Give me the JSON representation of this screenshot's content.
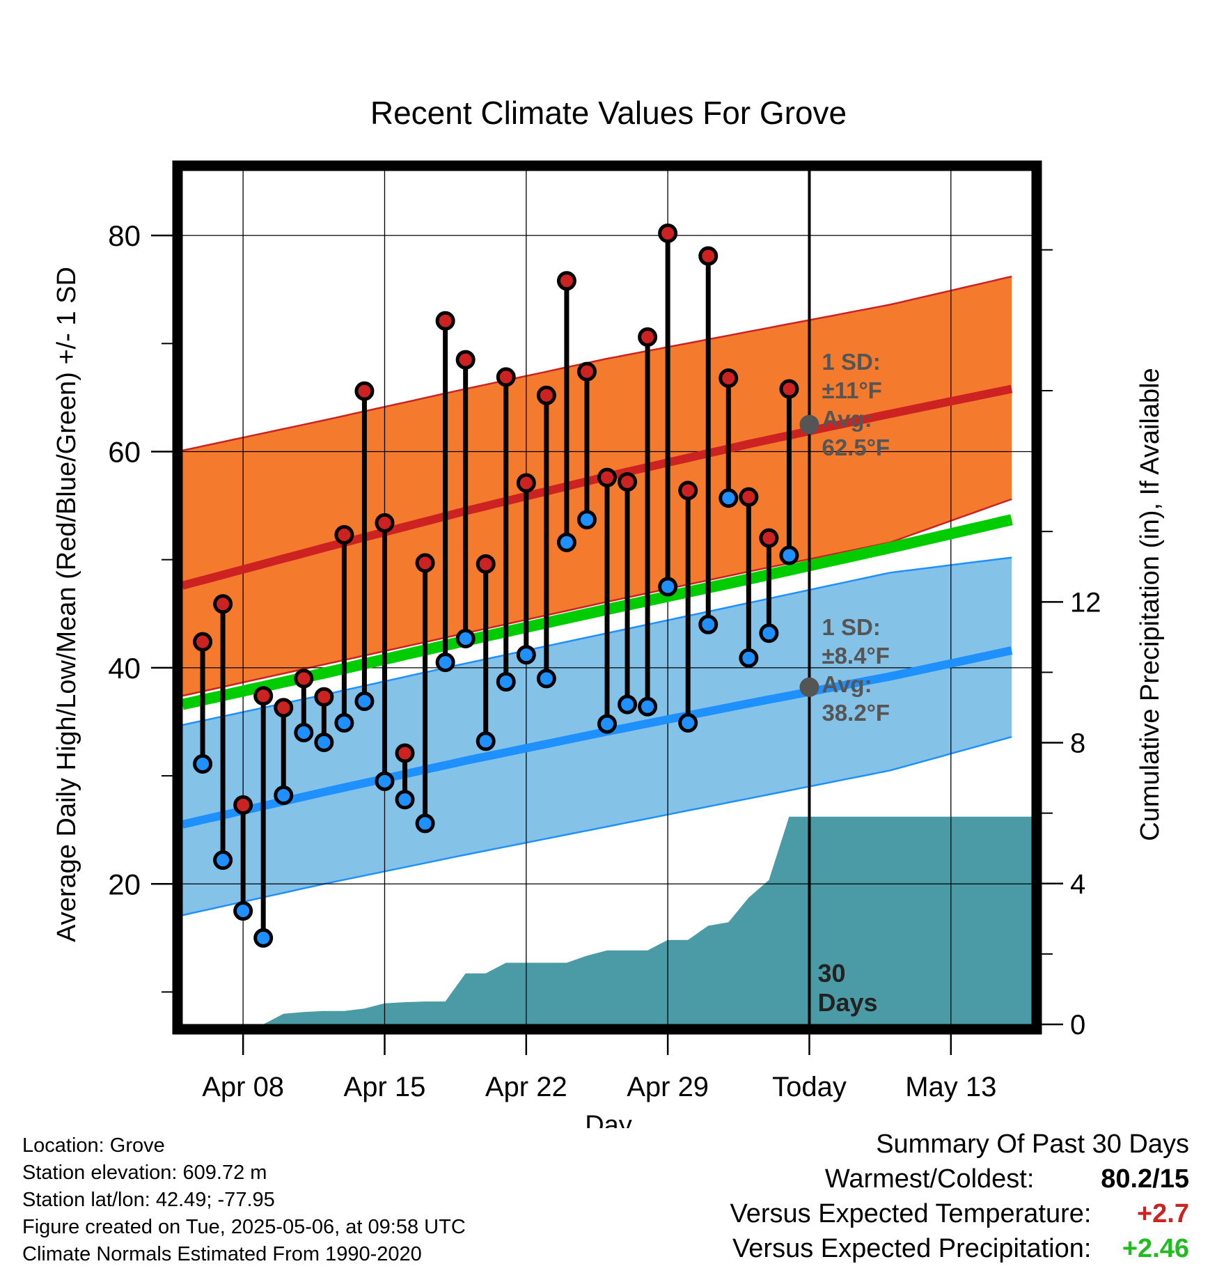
{
  "chart_data": {
    "type": "line",
    "title": "Recent Climate Values For Grove",
    "xlabel": "Day",
    "ylabel": "Average Daily High/Low/Mean (Red/Blue/Green) +/- 1 SD",
    "y2label": "Cumulative Precipitation (in), If Available",
    "x_range": [
      "2025-04-05",
      "2025-05-17"
    ],
    "ylim": [
      7,
      86
    ],
    "y2lim": [
      0,
      24.25
    ],
    "yticks": [
      20,
      40,
      60,
      80
    ],
    "y2ticks": [
      0,
      4,
      8,
      12
    ],
    "xticks": [
      {
        "date": "2025-04-08",
        "label": "Apr 08"
      },
      {
        "date": "2025-04-15",
        "label": "Apr 15"
      },
      {
        "date": "2025-04-22",
        "label": "Apr 22"
      },
      {
        "date": "2025-04-29",
        "label": "Apr 29"
      },
      {
        "date": "2025-05-06",
        "label": "Today"
      },
      {
        "date": "2025-05-13",
        "label": "May 13"
      }
    ],
    "grid": true,
    "today": "2025-05-06",
    "today_label": [
      "30",
      "Days"
    ],
    "colors": {
      "high_band": "#f47a2e",
      "high_line": "#cc2222",
      "low_band": "#85c2e8",
      "low_line": "#1e90ff",
      "mean_line": "#00cc00",
      "precip": "#4a9ba5",
      "high_marker": "#cc2222",
      "low_marker": "#1e90ff",
      "avg_marker": "#555555",
      "annotation": "#555555",
      "warm_text": "#cc2222",
      "wet_text": "#22bb22"
    },
    "normals": {
      "dates": [
        "2025-04-05",
        "2025-04-12",
        "2025-04-19",
        "2025-04-26",
        "2025-05-03",
        "2025-05-10",
        "2025-05-16"
      ],
      "high_mean": [
        47.6,
        51.1,
        54.5,
        57.7,
        60.7,
        63.5,
        65.8
      ],
      "high_upper": [
        60.1,
        62.9,
        65.8,
        68.6,
        71.1,
        73.6,
        76.2
      ],
      "high_lower": [
        37.4,
        40.3,
        43.2,
        46.1,
        48.9,
        51.6,
        55.6
      ],
      "mean": [
        36.6,
        39.5,
        42.5,
        45.4,
        48.2,
        51.1,
        53.7
      ],
      "low_mean": [
        25.5,
        28.5,
        31.4,
        34.1,
        36.7,
        39.2,
        41.6
      ],
      "low_upper": [
        34.7,
        37.5,
        40.4,
        43.2,
        46.0,
        48.8,
        50.2
      ],
      "low_lower": [
        17.1,
        20.0,
        22.7,
        25.3,
        27.9,
        30.5,
        33.6
      ]
    },
    "daily": {
      "dates": [
        "2025-04-06",
        "2025-04-07",
        "2025-04-08",
        "2025-04-09",
        "2025-04-10",
        "2025-04-11",
        "2025-04-12",
        "2025-04-13",
        "2025-04-14",
        "2025-04-15",
        "2025-04-16",
        "2025-04-17",
        "2025-04-18",
        "2025-04-19",
        "2025-04-20",
        "2025-04-21",
        "2025-04-22",
        "2025-04-23",
        "2025-04-24",
        "2025-04-25",
        "2025-04-26",
        "2025-04-27",
        "2025-04-28",
        "2025-04-29",
        "2025-04-30",
        "2025-05-01",
        "2025-05-02",
        "2025-05-03",
        "2025-05-04",
        "2025-05-05"
      ],
      "high": [
        42.4,
        45.9,
        27.3,
        37.4,
        36.3,
        39.0,
        37.3,
        52.3,
        65.6,
        53.4,
        32.1,
        49.7,
        72.1,
        68.5,
        49.6,
        66.9,
        57.1,
        65.2,
        75.8,
        67.4,
        57.6,
        57.2,
        70.6,
        80.2,
        56.4,
        78.1,
        66.8,
        55.8,
        52.0,
        65.8
      ],
      "low": [
        31.1,
        22.2,
        17.5,
        15.0,
        28.2,
        34.0,
        33.1,
        34.9,
        36.9,
        29.5,
        27.8,
        25.6,
        40.5,
        42.7,
        33.2,
        38.7,
        41.2,
        39.0,
        51.6,
        53.7,
        34.8,
        36.6,
        36.4,
        47.5,
        34.9,
        44.0,
        55.7,
        40.9,
        43.2,
        50.4
      ]
    },
    "precip": {
      "dates": [
        "2025-04-05",
        "2025-04-09",
        "2025-04-10",
        "2025-04-11",
        "2025-04-12",
        "2025-04-13",
        "2025-04-14",
        "2025-04-15",
        "2025-04-16",
        "2025-04-17",
        "2025-04-18",
        "2025-04-19",
        "2025-04-20",
        "2025-04-21",
        "2025-04-22",
        "2025-04-23",
        "2025-04-24",
        "2025-04-25",
        "2025-04-26",
        "2025-04-27",
        "2025-04-28",
        "2025-04-29",
        "2025-04-30",
        "2025-05-01",
        "2025-05-02",
        "2025-05-03",
        "2025-05-04",
        "2025-05-05",
        "2025-05-06",
        "2025-05-17"
      ],
      "values": [
        0,
        0,
        0.3,
        0.35,
        0.38,
        0.38,
        0.45,
        0.6,
        0.63,
        0.65,
        0.65,
        1.45,
        1.45,
        1.75,
        1.75,
        1.75,
        1.75,
        1.95,
        2.1,
        2.1,
        2.1,
        2.4,
        2.4,
        2.8,
        2.9,
        3.6,
        4.1,
        5.9,
        5.9,
        5.9
      ]
    },
    "annotations": {
      "high": {
        "avg_value": 62.5,
        "lines": [
          "1 SD:",
          "±11°F",
          "Avg:",
          "62.5°F"
        ]
      },
      "low": {
        "avg_value": 38.2,
        "lines": [
          "1 SD:",
          "±8.4°F",
          "Avg:",
          "38.2°F"
        ]
      }
    }
  },
  "meta": {
    "location": "Location: Grove",
    "elevation": "Station elevation: 609.72 m",
    "latlon": "Station lat/lon: 42.49; -77.95",
    "created": "Figure created on Tue, 2025-05-06, at 09:58 UTC",
    "normals": "Climate Normals Estimated From 1990-2020"
  },
  "summary": {
    "title": "Summary Of Past 30 Days",
    "warmest_label": "Warmest/Coldest:",
    "warmest_value": "80.2/15",
    "temp_label": "Versus Expected Temperature:",
    "temp_value": "+2.7",
    "precip_label": "Versus Expected Precipitation:",
    "precip_value": "+2.46"
  }
}
